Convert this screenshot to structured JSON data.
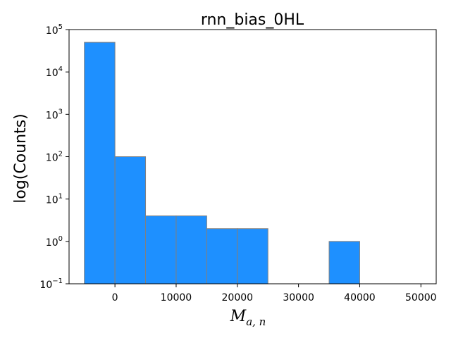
{
  "chart_data": {
    "type": "bar",
    "title": "rnn_bias_0HL",
    "ylabel": "log(Counts)",
    "xlabel_main": "M",
    "xlabel_sub": "a, n",
    "y_scale": "log",
    "ylim": [
      0.1,
      100000
    ],
    "xlim": [
      -7500,
      52500
    ],
    "bin_width": 5000,
    "bins": [
      {
        "start": -5000,
        "end": 0,
        "count": 50000
      },
      {
        "start": 0,
        "end": 5000,
        "count": 100
      },
      {
        "start": 5000,
        "end": 10000,
        "count": 4
      },
      {
        "start": 10000,
        "end": 15000,
        "count": 4
      },
      {
        "start": 15000,
        "end": 20000,
        "count": 2
      },
      {
        "start": 20000,
        "end": 25000,
        "count": 2
      },
      {
        "start": 25000,
        "end": 30000,
        "count": 0
      },
      {
        "start": 30000,
        "end": 35000,
        "count": 0
      },
      {
        "start": 35000,
        "end": 40000,
        "count": 1
      },
      {
        "start": 40000,
        "end": 45000,
        "count": 0
      },
      {
        "start": 45000,
        "end": 50000,
        "count": 0
      }
    ],
    "x_ticks": [
      {
        "value": 0,
        "label": "0"
      },
      {
        "value": 10000,
        "label": "10000"
      },
      {
        "value": 20000,
        "label": "20000"
      },
      {
        "value": 30000,
        "label": "30000"
      },
      {
        "value": 40000,
        "label": "40000"
      },
      {
        "value": 50000,
        "label": "50000"
      }
    ],
    "y_ticks": [
      {
        "value": 0.1,
        "base": "10",
        "exp": "−1"
      },
      {
        "value": 1,
        "base": "10",
        "exp": "0"
      },
      {
        "value": 10,
        "base": "10",
        "exp": "1"
      },
      {
        "value": 100,
        "base": "10",
        "exp": "2"
      },
      {
        "value": 1000,
        "base": "10",
        "exp": "3"
      },
      {
        "value": 10000,
        "base": "10",
        "exp": "4"
      },
      {
        "value": 100000,
        "base": "10",
        "exp": "5"
      }
    ],
    "grid": false,
    "colors": {
      "bar_fill": "#1e90ff",
      "bar_edge": "#808080",
      "axes": "#000000"
    }
  }
}
